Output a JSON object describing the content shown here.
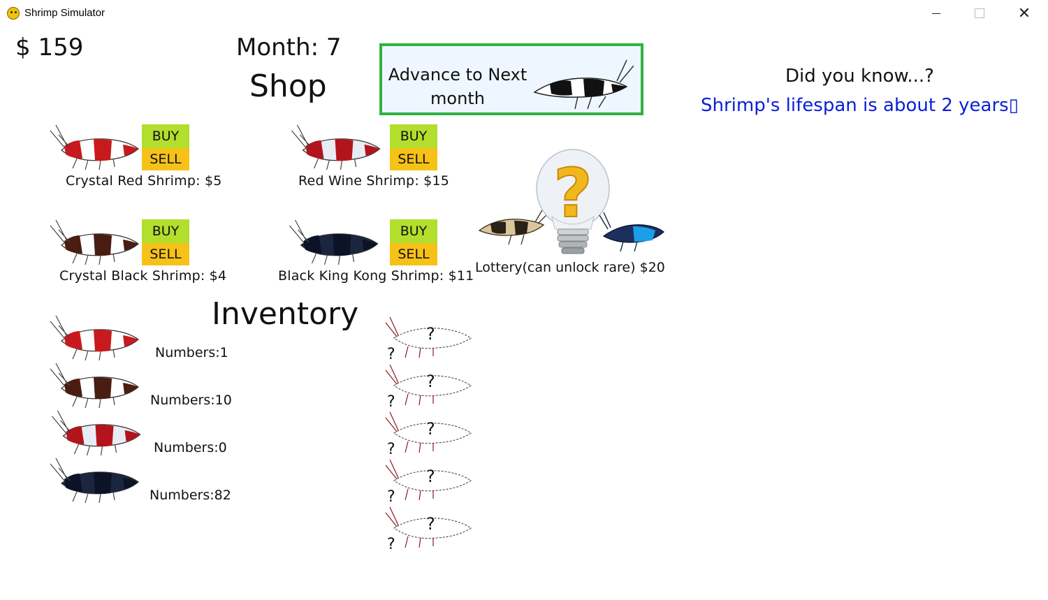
{
  "window": {
    "title": "Shrimp Simulator",
    "controls": {
      "minimize": "minimize-icon",
      "maximize": "maximize-icon",
      "close": "✕"
    }
  },
  "hud": {
    "money": "$ 159",
    "month": "Month: 7"
  },
  "headings": {
    "shop": "Shop",
    "inventory": "Inventory"
  },
  "advance_button": {
    "label": "Advance to Next month"
  },
  "tip": {
    "heading": "Did you know...?",
    "fact": "Shrimp's lifespan is about 2 years▯"
  },
  "shop": {
    "buy_label": "BUY",
    "sell_label": "SELL",
    "items": [
      {
        "name": "Crystal Red Shrimp: $5",
        "colors": {
          "body": "#c8191e",
          "band": "#ffffff"
        }
      },
      {
        "name": "Red Wine Shrimp: $15",
        "colors": {
          "body": "#b3141c",
          "band": "#e8edf5"
        }
      },
      {
        "name": "Crystal Black Shrimp: $4",
        "colors": {
          "body": "#4a1d12",
          "band": "#ffffff"
        }
      },
      {
        "name": "Black King Kong Shrimp: $11",
        "colors": {
          "body": "#0d1326",
          "band": "#1b2540"
        }
      }
    ]
  },
  "lottery": {
    "label": "Lottery(can unlock rare) $20",
    "icon": "lightbulb-question-icon"
  },
  "inventory": {
    "rows": [
      {
        "count": "Numbers:1",
        "colors": {
          "body": "#c8191e",
          "band": "#ffffff"
        }
      },
      {
        "count": "Numbers:10",
        "colors": {
          "body": "#4a1d12",
          "band": "#ffffff"
        }
      },
      {
        "count": "Numbers:0",
        "colors": {
          "body": "#b3141c",
          "band": "#e8edf5"
        }
      },
      {
        "count": "Numbers:82",
        "colors": {
          "body": "#0d1326",
          "band": "#1b2540"
        }
      }
    ],
    "locked": [
      "?",
      "?",
      "?",
      "?",
      "?"
    ]
  },
  "colors": {
    "buy": "#b2de2d",
    "sell": "#f6c218",
    "advance_border": "#2fb243",
    "fact_text": "#0b20d6"
  }
}
